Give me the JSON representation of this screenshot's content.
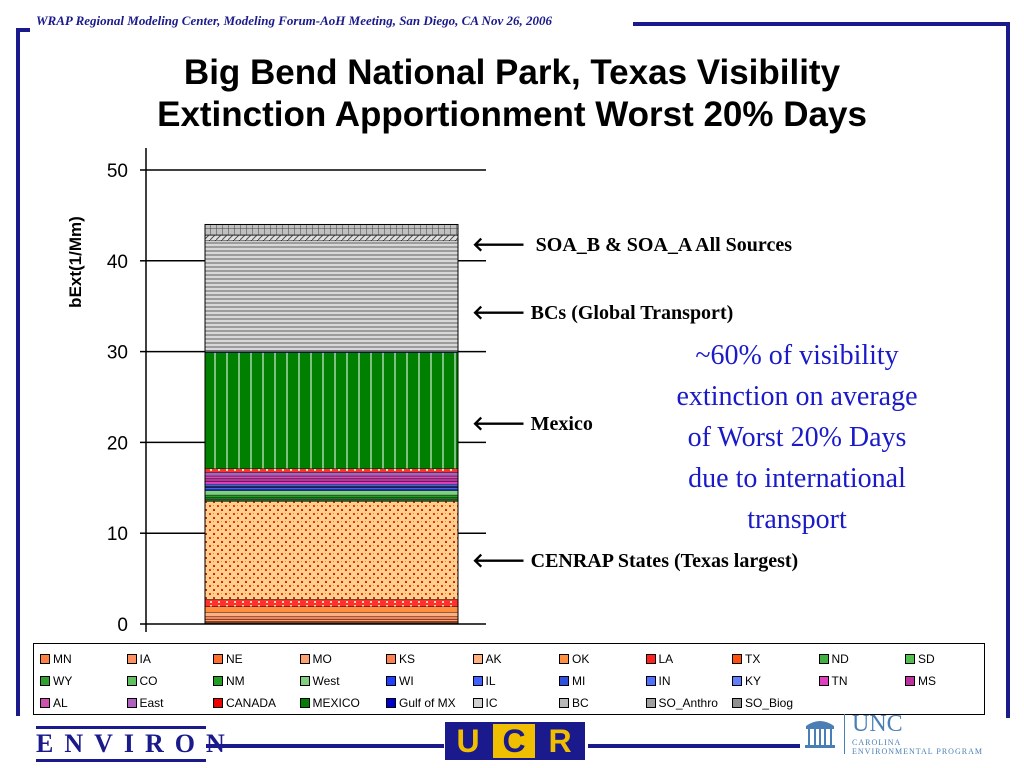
{
  "header": {
    "text": "WRAP Regional Modeling Center,  Modeling Forum-AoH Meeting, San Diego, CA  Nov 26, 2006"
  },
  "title_lines": [
    "Big Bend National Park, Texas Visibility",
    "Extinction Apportionment Worst 20% Days"
  ],
  "annotations": {
    "soa": "SOA_B & SOA_A All Sources",
    "bc": "BCs (Global Transport)",
    "mexico": "Mexico",
    "cenrap": "CENRAP States (Texas largest)"
  },
  "callout_lines": [
    "~60% of visibility",
    "extinction on average",
    "of Worst 20% Days",
    "due to international",
    "transport"
  ],
  "chart_data": {
    "type": "bar",
    "stacked": true,
    "title": "",
    "xlabel": "",
    "ylabel": "bExt(1/Mm)",
    "ylim": [
      0,
      50
    ],
    "yticks": [
      "0",
      "10",
      "20",
      "30",
      "40",
      "50"
    ],
    "grid": true,
    "legend_position": "bottom",
    "categories": [
      ""
    ],
    "series": [
      {
        "name": "MN",
        "values": [
          0.1
        ],
        "color": "#ff8040"
      },
      {
        "name": "IA",
        "values": [
          0.1
        ],
        "color": "#ff9060"
      },
      {
        "name": "NE",
        "values": [
          0.1
        ],
        "color": "#ff7030"
      },
      {
        "name": "MO",
        "values": [
          0.2
        ],
        "color": "#ffa070"
      },
      {
        "name": "KS",
        "values": [
          0.3
        ],
        "color": "#ff8050"
      },
      {
        "name": "AK",
        "values": [
          0.5
        ],
        "color": "#ffb080"
      },
      {
        "name": "OK",
        "values": [
          0.6
        ],
        "color": "#ff9040"
      },
      {
        "name": "LA",
        "values": [
          0.8
        ],
        "color": "#ff2020"
      },
      {
        "name": "TX",
        "values": [
          10.8
        ],
        "color": "#ff5010"
      },
      {
        "name": "ND",
        "values": [
          0.1
        ],
        "color": "#40b040"
      },
      {
        "name": "SD",
        "values": [
          0.1
        ],
        "color": "#50c050"
      },
      {
        "name": "WY",
        "values": [
          0.1
        ],
        "color": "#30a030"
      },
      {
        "name": "CO",
        "values": [
          0.1
        ],
        "color": "#60c060"
      },
      {
        "name": "NM",
        "values": [
          0.3
        ],
        "color": "#20a020"
      },
      {
        "name": "West",
        "values": [
          0.5
        ],
        "color": "#80d080"
      },
      {
        "name": "WI",
        "values": [
          0.1
        ],
        "color": "#2040ff"
      },
      {
        "name": "IL",
        "values": [
          0.2
        ],
        "color": "#4060ff"
      },
      {
        "name": "MI",
        "values": [
          0.1
        ],
        "color": "#3050e0"
      },
      {
        "name": "IN",
        "values": [
          0.1
        ],
        "color": "#5070ff"
      },
      {
        "name": "KY",
        "values": [
          0.2
        ],
        "color": "#6080ff"
      },
      {
        "name": "TN",
        "values": [
          0.3
        ],
        "color": "#e040c0"
      },
      {
        "name": "MS",
        "values": [
          0.3
        ],
        "color": "#c030a0"
      },
      {
        "name": "AL",
        "values": [
          0.3
        ],
        "color": "#d050b0"
      },
      {
        "name": "East",
        "values": [
          0.4
        ],
        "color": "#b060c0"
      },
      {
        "name": "CANADA",
        "values": [
          0.4
        ],
        "color": "#ee0000"
      },
      {
        "name": "MEXICO",
        "values": [
          12.8
        ],
        "color": "#008000"
      },
      {
        "name": "Gulf of MX",
        "values": [
          0.1
        ],
        "color": "#0000cc"
      },
      {
        "name": "IC",
        "values": [
          0.1
        ],
        "color": "#d0d0d0"
      },
      {
        "name": "BC",
        "values": [
          12.1
        ],
        "color": "#b8b8b8"
      },
      {
        "name": "SO_Anthro",
        "values": [
          0.6
        ],
        "color": "#a0a0a0"
      },
      {
        "name": "SO_Biog",
        "values": [
          1.2
        ],
        "color": "#909090"
      }
    ]
  }
}
